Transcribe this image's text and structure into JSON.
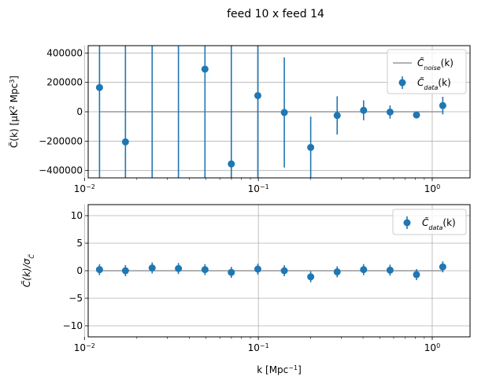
{
  "chart_data": {
    "title": "feed 10 x feed 14",
    "type": "scatter",
    "panels": [
      {
        "id": "top",
        "type": "errorbar",
        "xscale": "log",
        "xlim": [
          0.0105,
          1.65
        ],
        "ylim": [
          -450000,
          450000
        ],
        "yticks": [
          -400000,
          -200000,
          0,
          200000,
          400000
        ],
        "ytick_labels": [
          "−400000",
          "−200000",
          "0",
          "200000",
          "400000"
        ],
        "ylabel_main": "C̃(k) [μK",
        "ylabel_sup": "2",
        "ylabel_mid": " Mpc",
        "ylabel_sup2": "3",
        "ylabel_end": "]",
        "grid": true,
        "legend_position": "upper right",
        "legend": {
          "noise_label": "C̃",
          "noise_sub": "noise",
          "noise_suffix": "(k)",
          "data_label": "C̃",
          "data_sub": "data",
          "data_suffix": "(k)"
        },
        "noise_line": {
          "name": "C̃_noise(k)",
          "value": 0,
          "color": "#999999"
        },
        "series": {
          "name": "C̃_data(k)",
          "color": "#1f77b4",
          "x": [
            0.0122,
            0.0172,
            0.0245,
            0.0347,
            0.0493,
            0.0699,
            0.0993,
            0.141,
            0.2,
            0.284,
            0.403,
            0.572,
            0.812,
            1.15
          ],
          "y": [
            165000,
            -205000,
            null,
            null,
            290000,
            -355000,
            110000,
            -5000,
            -243000,
            -25000,
            10000,
            -2000,
            -22000,
            42000
          ],
          "err": [
            1000000,
            1000000,
            1000000,
            1000000,
            1000000,
            1000000,
            1000000,
            375000,
            210000,
            130000,
            68000,
            45000,
            22000,
            60000
          ]
        }
      },
      {
        "id": "bottom",
        "type": "errorbar",
        "xscale": "log",
        "xlim": [
          0.0105,
          1.65
        ],
        "ylim": [
          -12,
          12
        ],
        "yticks": [
          -10,
          -5,
          0,
          5,
          10
        ],
        "ytick_labels": [
          "−10",
          "−5",
          "0",
          "5",
          "10"
        ],
        "ylabel": "C̃(k)/σ",
        "ylabel_sub": "C̃",
        "xlabel_main": "k [Mpc",
        "xlabel_sup": "−1",
        "xlabel_end": "]",
        "grid": true,
        "legend_position": "upper right",
        "legend": {
          "data_label": "C̃",
          "data_sub": "data",
          "data_suffix": "(k)"
        },
        "zero_line": {
          "value": 0,
          "color": "#999999"
        },
        "series": {
          "name": "C̃_data(k)",
          "color": "#1f77b4",
          "x": [
            0.0122,
            0.0172,
            0.0245,
            0.0347,
            0.0493,
            0.0699,
            0.0993,
            0.141,
            0.2,
            0.284,
            0.403,
            0.572,
            0.812,
            1.15
          ],
          "y": [
            0.2,
            0.0,
            0.5,
            0.4,
            0.2,
            -0.3,
            0.3,
            0.0,
            -1.1,
            -0.2,
            0.2,
            0.1,
            -0.7,
            0.7
          ],
          "err": [
            1,
            1,
            1,
            1,
            1,
            1,
            1,
            1,
            1,
            1,
            1,
            1,
            1,
            1
          ]
        }
      }
    ],
    "xticks": [
      0.01,
      0.1,
      1
    ],
    "xtick_labels": [
      {
        "base": "10",
        "exp": "−2"
      },
      {
        "base": "10",
        "exp": "−1"
      },
      {
        "base": "10",
        "exp": "0"
      }
    ]
  }
}
